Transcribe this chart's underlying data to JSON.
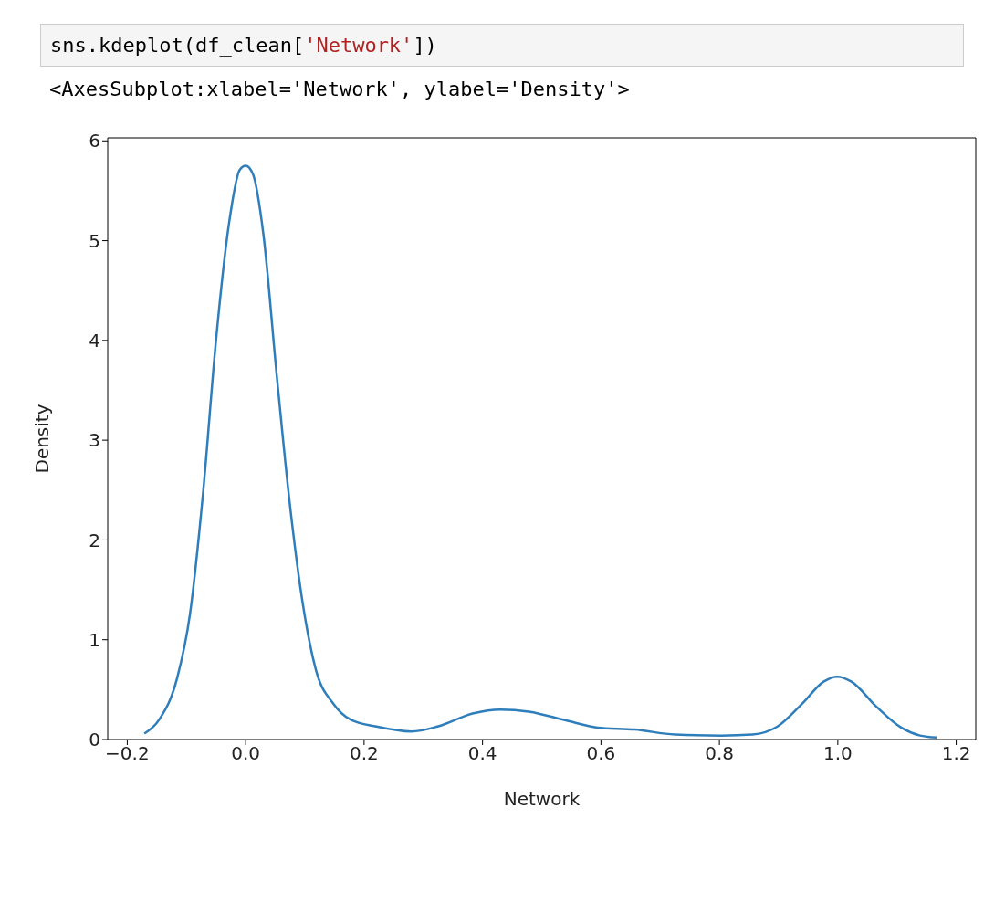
{
  "chart_data": {
    "type": "line",
    "xlabel": "Network",
    "ylabel": "Density",
    "annotations": [
      "sns.kdeplot(df_clean['Network'])",
      "<AxesSubplot:xlabel='Network', ylabel='Density'>"
    ],
    "series": [
      {
        "color": "#2f7ebc",
        "x": [
          -0.171,
          -0.146,
          -0.116,
          -0.094,
          -0.072,
          -0.05,
          -0.028,
          -0.01,
          0.0,
          0.012,
          0.03,
          0.052,
          0.074,
          0.097,
          0.119,
          0.148,
          0.177,
          0.221,
          0.28,
          0.324,
          0.383,
          0.43,
          0.478,
          0.542,
          0.594,
          0.657,
          0.725,
          0.803,
          0.856,
          0.898,
          0.94,
          0.976,
          0.999,
          1.023,
          1.065,
          1.107,
          1.139,
          1.167
        ],
        "values": [
          0.06,
          0.2,
          0.61,
          1.26,
          2.47,
          4.01,
          5.18,
          5.71,
          5.75,
          5.67,
          5.06,
          3.68,
          2.39,
          1.34,
          0.69,
          0.36,
          0.2,
          0.13,
          0.08,
          0.13,
          0.26,
          0.3,
          0.28,
          0.19,
          0.12,
          0.1,
          0.05,
          0.04,
          0.05,
          0.13,
          0.36,
          0.58,
          0.63,
          0.58,
          0.33,
          0.12,
          0.04,
          0.02
        ]
      }
    ],
    "xlim": [
      -0.233,
      1.233
    ],
    "ylim": [
      0,
      6.03
    ],
    "xticks": [
      {
        "value": -0.2,
        "label": "−0.2"
      },
      {
        "value": 0,
        "label": "0.0"
      },
      {
        "value": 0.2,
        "label": "0.2"
      },
      {
        "value": 0.4,
        "label": "0.4"
      },
      {
        "value": 0.6,
        "label": "0.6"
      },
      {
        "value": 0.8,
        "label": "0.8"
      },
      {
        "value": 1,
        "label": "1.0"
      },
      {
        "value": 1.2,
        "label": "1.2"
      }
    ],
    "yticks": [
      0,
      1,
      2,
      3,
      4,
      5,
      6
    ],
    "marker": "none",
    "line_style": "solid",
    "grid": false,
    "legend": false
  }
}
